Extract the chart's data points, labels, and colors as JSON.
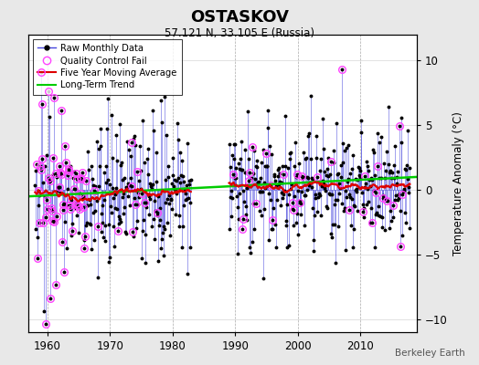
{
  "title": "OSTASKOV",
  "subtitle": "57.121 N, 33.105 E (Russia)",
  "ylabel": "Temperature Anomaly (°C)",
  "watermark": "Berkeley Earth",
  "xlim": [
    1957,
    2019
  ],
  "ylim": [
    -11,
    12
  ],
  "yticks": [
    -10,
    -5,
    0,
    5,
    10
  ],
  "xticks": [
    1960,
    1970,
    1980,
    1990,
    2000,
    2010
  ],
  "bg_color": "#e8e8e8",
  "plot_bg_color": "#ffffff",
  "raw_line_color": "#4444dd",
  "raw_dot_color": "#000000",
  "qc_color": "#ff44ff",
  "moving_avg_color": "#dd0000",
  "trend_color": "#00cc00",
  "seed1": 10,
  "seed2": 20
}
